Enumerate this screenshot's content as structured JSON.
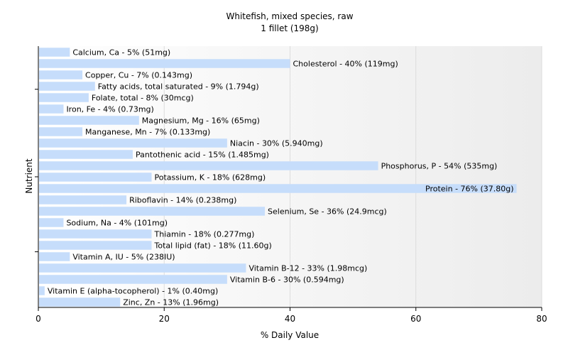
{
  "chart_data": {
    "type": "bar",
    "orientation": "horizontal",
    "title": "Whitefish, mixed species, raw",
    "subtitle": "1 fillet (198g)",
    "xlabel": "% Daily Value",
    "ylabel": "Nutrient",
    "xlim": [
      0,
      80
    ],
    "xticks": [
      0,
      20,
      40,
      60,
      80
    ],
    "grid": "vertical",
    "bar_color": "#c6ddfb",
    "background_gradient": [
      "#ffffff",
      "#ececec"
    ],
    "categories": [
      "Calcium, Ca - 5% (51mg)",
      "Cholesterol - 40% (119mg)",
      "Copper, Cu - 7% (0.143mg)",
      "Fatty acids, total saturated - 9% (1.794g)",
      "Folate, total - 8% (30mcg)",
      "Iron, Fe - 4% (0.73mg)",
      "Magnesium, Mg - 16% (65mg)",
      "Manganese, Mn - 7% (0.133mg)",
      "Niacin - 30% (5.940mg)",
      "Pantothenic acid - 15% (1.485mg)",
      "Phosphorus, P - 54% (535mg)",
      "Potassium, K - 18% (628mg)",
      "Protein - 76% (37.80g)",
      "Riboflavin - 14% (0.238mg)",
      "Selenium, Se - 36% (24.9mcg)",
      "Sodium, Na - 4% (101mg)",
      "Thiamin - 18% (0.277mg)",
      "Total lipid (fat) - 18% (11.60g)",
      "Vitamin A, IU - 5% (238IU)",
      "Vitamin B-12 - 33% (1.98mcg)",
      "Vitamin B-6 - 30% (0.594mg)",
      "Vitamin E (alpha-tocopherol) - 1% (0.40mg)",
      "Zinc, Zn - 13% (1.96mg)"
    ],
    "values": [
      5,
      40,
      7,
      9,
      8,
      4,
      16,
      7,
      30,
      15,
      54,
      18,
      76,
      14,
      36,
      4,
      18,
      18,
      5,
      33,
      30,
      1,
      13
    ]
  }
}
